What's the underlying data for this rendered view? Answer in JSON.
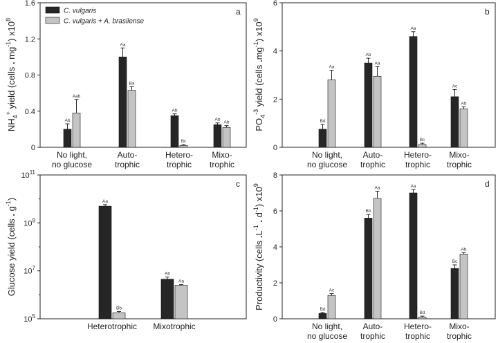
{
  "colors": {
    "s1": "#262626",
    "s2": "#c4c4c4",
    "axis": "#222222"
  },
  "legend": [
    {
      "label": "C. vulgaris"
    },
    {
      "label": "C. vulgaris + A. brasilense"
    }
  ],
  "chart_data": [
    {
      "type": "bar",
      "panel": "a",
      "ylabel": "NH4+ yield (cells . mg-1) x10^8",
      "ylim": [
        0,
        1.6
      ],
      "yticks": [
        "0",
        "0.4",
        "0.8",
        "1.2",
        "1.6"
      ],
      "categories": [
        "No light, no glucose",
        "Auto- trophic",
        "Hetero- trophic",
        "Mixo- trophic"
      ],
      "series": [
        {
          "name": "C. vulgaris",
          "values": [
            0.2,
            1.0,
            0.35,
            0.25
          ],
          "errors": [
            0.06,
            0.1,
            0.02,
            0.02
          ],
          "labels": [
            "Ab",
            "Aa",
            "Ab",
            "Ab"
          ]
        },
        {
          "name": "C. vulgaris + A. brasilense",
          "values": [
            0.38,
            0.63,
            0.02,
            0.22
          ],
          "errors": [
            0.15,
            0.04,
            0.01,
            0.02
          ],
          "labels": [
            "Aab",
            "Ba",
            "Bc",
            "Ab"
          ]
        }
      ]
    },
    {
      "type": "bar",
      "panel": "b",
      "ylabel": "PO4-3 yield (cells . mg-1) x10^9",
      "ylim": [
        0,
        6
      ],
      "yticks": [
        "0",
        "2",
        "4",
        "6"
      ],
      "categories": [
        "No light, no glucose",
        "Auto- trophic",
        "Hetero- trophic",
        "Mixo- trophic"
      ],
      "series": [
        {
          "name": "C. vulgaris",
          "values": [
            0.75,
            3.5,
            4.6,
            2.1
          ],
          "errors": [
            0.2,
            0.2,
            0.2,
            0.3
          ],
          "labels": [
            "Bd",
            "Ab",
            "Aa",
            "Ac"
          ]
        },
        {
          "name": "C. vulgaris + A. brasilense",
          "values": [
            2.8,
            2.95,
            0.12,
            1.6
          ],
          "errors": [
            0.4,
            0.4,
            0.05,
            0.08
          ],
          "labels": [
            "Aa",
            "Aa",
            "Bc",
            "Ab"
          ]
        }
      ]
    },
    {
      "type": "bar",
      "panel": "c",
      "ylabel": "Glucose yield (cells . g-1)",
      "yscale": "log",
      "ylim": [
        100000,
        100000000000
      ],
      "yticks": [
        "10^5",
        "10^7",
        "10^9",
        "10^11"
      ],
      "categories": [
        "Heterotrophic",
        "Mixotrophic"
      ],
      "series": [
        {
          "name": "C. vulgaris",
          "values": [
            5000000000,
            4500000
          ],
          "errors": [
            800000000,
            1000000
          ],
          "labels": [
            "Aa",
            "Ab"
          ]
        },
        {
          "name": "C. vulgaris + A. brasilense",
          "values": [
            180000,
            2500000
          ],
          "errors": [
            20000,
            200000
          ],
          "labels": [
            "Bb",
            "Aa"
          ]
        }
      ]
    },
    {
      "type": "bar",
      "panel": "d",
      "ylabel": "Productivity (cells . L-1 . d-1) x10^9",
      "ylim": [
        0,
        8
      ],
      "yticks": [
        "0",
        "2",
        "4",
        "6",
        "8"
      ],
      "categories": [
        "No light, no glucose",
        "Auto- trophic",
        "Hetero- trophic",
        "Mixo- trophic"
      ],
      "series": [
        {
          "name": "C. vulgaris",
          "values": [
            0.3,
            5.6,
            7.0,
            2.8
          ],
          "errors": [
            0.05,
            0.2,
            0.2,
            0.2
          ],
          "labels": [
            "Bd",
            "Bb",
            "Aa",
            "Bc"
          ]
        },
        {
          "name": "C. vulgaris + A. brasilense",
          "values": [
            1.3,
            6.7,
            0.1,
            3.6
          ],
          "errors": [
            0.1,
            0.4,
            0.05,
            0.08
          ],
          "labels": [
            "Ac",
            "Aa",
            "Bd",
            "Ab"
          ]
        }
      ]
    }
  ]
}
